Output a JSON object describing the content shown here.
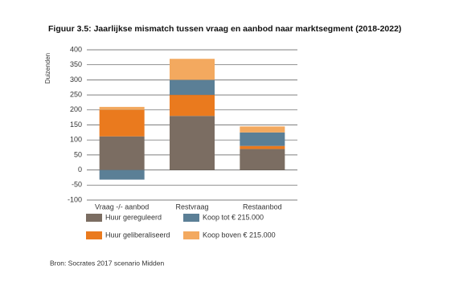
{
  "chart_data": {
    "type": "stacked-bar",
    "title": "Figuur 3.5: Jaarlijkse mismatch tussen vraag en aanbod naar marktsegment (2018-2022)",
    "y_label": "Duizenden",
    "source": "Bron: Socrates 2017 scenario Midden",
    "categories": [
      "Vraag -/- aanbod",
      "Restvraag",
      "Restaanbod"
    ],
    "series": [
      {
        "name": "Huur gereguleerd",
        "color": "#7b6d62",
        "values": [
          112,
          180,
          70
        ]
      },
      {
        "name": "Huur geliberaliseerd",
        "color": "#ea7a1e",
        "values": [
          88,
          70,
          10
        ]
      },
      {
        "name": "Koop tot € 215.000",
        "color": "#5b7f96",
        "values": [
          -32,
          50,
          45
        ]
      },
      {
        "name": "Koop boven € 215.000",
        "color": "#f3a95f",
        "values": [
          10,
          70,
          20
        ]
      }
    ],
    "ylim": [
      -100,
      400
    ],
    "yticks": [
      -100,
      -50,
      0,
      50,
      100,
      150,
      200,
      250,
      300,
      350,
      400
    ],
    "grid": true
  }
}
